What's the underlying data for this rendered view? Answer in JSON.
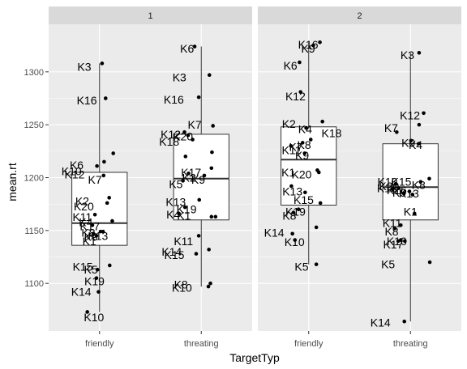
{
  "chart_data": {
    "type": "boxplot",
    "xlabel": "TargetTyp",
    "ylabel": "mean.rt",
    "yticks": [
      1100,
      1150,
      1200,
      1250,
      1300
    ],
    "ylim": [
      1055,
      1345
    ],
    "categories": [
      "friendly",
      "threating"
    ],
    "grid": true,
    "facets": [
      {
        "strip": "1",
        "boxes": [
          {
            "category": "friendly",
            "min": 1073,
            "q1": 1136,
            "median": 1157,
            "q3": 1205,
            "max": 1308
          },
          {
            "category": "threating",
            "min": 1097,
            "q1": 1160,
            "median": 1199,
            "q3": 1241,
            "max": 1324
          }
        ],
        "points": [
          {
            "category": "friendly",
            "y": 1308,
            "jitter": 0.05,
            "label": "K3",
            "lx": -0.3,
            "ly": 1305
          },
          {
            "category": "friendly",
            "y": 1275,
            "jitter": 0.12,
            "label": "K16",
            "lx": -0.25,
            "ly": 1273
          },
          {
            "category": "friendly",
            "y": 1223,
            "jitter": 0.27,
            "label": "K6",
            "lx": -0.45,
            "ly": 1212
          },
          {
            "category": "friendly",
            "y": 1215,
            "jitter": 0.09,
            "label": "K10",
            "lx": -0.55,
            "ly": 1206
          },
          {
            "category": "friendly",
            "y": 1211,
            "jitter": -0.05,
            "label": "K12",
            "lx": -0.49,
            "ly": 1203
          },
          {
            "category": "friendly",
            "y": 1202,
            "jitter": 0.08,
            "label": "K7",
            "lx": -0.09,
            "ly": 1198
          },
          {
            "category": "friendly",
            "y": 1181,
            "jitter": 0.19,
            "label": "K2",
            "lx": -0.34,
            "ly": 1178
          },
          {
            "category": "friendly",
            "y": 1176,
            "jitter": 0.15,
            "label": "K20",
            "lx": -0.31,
            "ly": 1173
          },
          {
            "category": "friendly",
            "y": 1165,
            "jitter": -0.09,
            "label": "K11",
            "lx": -0.34,
            "ly": 1163
          },
          {
            "category": "friendly",
            "y": 1159,
            "jitter": 0.25,
            "label": "K4",
            "lx": -0.27,
            "ly": 1158
          },
          {
            "category": "friendly",
            "y": 1155,
            "jitter": -0.14,
            "label": "K17",
            "lx": -0.19,
            "ly": 1154
          },
          {
            "category": "friendly",
            "y": 1149,
            "jitter": 0.02,
            "label": "K8",
            "lx": -0.22,
            "ly": 1148
          },
          {
            "category": "friendly",
            "y": 1149,
            "jitter": 0.07,
            "label": "K13",
            "lx": -0.03,
            "ly": 1145
          },
          {
            "category": "friendly",
            "y": 1147,
            "jitter": -0.12,
            "label": "K9",
            "lx": -0.17,
            "ly": 1144
          },
          {
            "category": "friendly",
            "y": 1145,
            "jitter": -0.06,
            "label": "K1",
            "lx": -0.2,
            "ly": 1140
          },
          {
            "category": "friendly",
            "y": 1117,
            "jitter": 0.2,
            "label": "K15",
            "lx": -0.33,
            "ly": 1116
          },
          {
            "category": "friendly",
            "y": 1113,
            "jitter": -0.04,
            "label": "K5",
            "lx": -0.17,
            "ly": 1113
          },
          {
            "category": "friendly",
            "y": 1105,
            "jitter": -0.06,
            "label": "K19",
            "lx": -0.1,
            "ly": 1102
          },
          {
            "category": "friendly",
            "y": 1092,
            "jitter": -0.02,
            "label": "K14",
            "lx": -0.36,
            "ly": 1092
          },
          {
            "category": "friendly",
            "y": 1073,
            "jitter": -0.24,
            "label": "K10",
            "lx": -0.11,
            "ly": 1068
          },
          {
            "category": "threating",
            "y": 1324,
            "jitter": -0.13,
            "label": "K6",
            "lx": -0.28,
            "ly": 1322
          },
          {
            "category": "threating",
            "y": 1297,
            "jitter": 0.16,
            "label": "K3",
            "lx": -0.43,
            "ly": 1295
          },
          {
            "category": "threating",
            "y": 1276,
            "jitter": -0.05,
            "label": "K16",
            "lx": -0.54,
            "ly": 1274
          },
          {
            "category": "threating",
            "y": 1249,
            "jitter": 0.23,
            "label": "K7",
            "lx": -0.13,
            "ly": 1250
          },
          {
            "category": "threating",
            "y": 1243,
            "jitter": -0.33,
            "label": "K12",
            "lx": -0.6,
            "ly": 1241
          },
          {
            "category": "threating",
            "y": 1240,
            "jitter": -0.26,
            "label": "K20",
            "lx": -0.36,
            "ly": 1239
          },
          {
            "category": "threating",
            "y": 1236,
            "jitter": -0.17,
            "label": "K18",
            "lx": -0.63,
            "ly": 1234
          },
          {
            "category": "threating",
            "y": 1224,
            "jitter": 0.21,
            "label": "",
            "lx": 0,
            "ly": 0
          },
          {
            "category": "threating",
            "y": 1220,
            "jitter": -0.31,
            "label": "",
            "lx": 0,
            "ly": 0
          },
          {
            "category": "threating",
            "y": 1209,
            "jitter": 0.2,
            "label": "K17",
            "lx": -0.2,
            "ly": 1205
          },
          {
            "category": "threating",
            "y": 1204,
            "jitter": -0.25,
            "label": "K2",
            "lx": -0.24,
            "ly": 1200
          },
          {
            "category": "threating",
            "y": 1202,
            "jitter": 0.06,
            "label": "K9",
            "lx": -0.06,
            "ly": 1198
          },
          {
            "category": "threating",
            "y": 1197,
            "jitter": -0.36,
            "label": "K5",
            "lx": -0.5,
            "ly": 1194
          },
          {
            "category": "threating",
            "y": 1179,
            "jitter": -0.04,
            "label": "K13",
            "lx": -0.5,
            "ly": 1177
          },
          {
            "category": "threating",
            "y": 1172,
            "jitter": -0.32,
            "label": "K19",
            "lx": -0.29,
            "ly": 1170
          },
          {
            "category": "threating",
            "y": 1166,
            "jitter": -0.44,
            "label": "K4",
            "lx": -0.55,
            "ly": 1165
          },
          {
            "category": "threating",
            "y": 1163,
            "jitter": 0.2,
            "label": "K1",
            "lx": -0.34,
            "ly": 1164
          },
          {
            "category": "threating",
            "y": 1163,
            "jitter": 0.28,
            "label": "",
            "lx": 0,
            "ly": 0
          },
          {
            "category": "threating",
            "y": 1145,
            "jitter": -0.05,
            "label": "K11",
            "lx": -0.35,
            "ly": 1140
          },
          {
            "category": "threating",
            "y": 1132,
            "jitter": 0.15,
            "label": "K14",
            "lx": -0.58,
            "ly": 1130
          },
          {
            "category": "threating",
            "y": 1128,
            "jitter": -0.1,
            "label": "K15",
            "lx": -0.53,
            "ly": 1127
          },
          {
            "category": "threating",
            "y": 1100,
            "jitter": 0.18,
            "label": "K8",
            "lx": -0.4,
            "ly": 1099
          },
          {
            "category": "threating",
            "y": 1097,
            "jitter": 0.14,
            "label": "K10",
            "lx": -0.38,
            "ly": 1096
          }
        ]
      },
      {
        "strip": "2",
        "boxes": [
          {
            "category": "friendly",
            "min": 1118,
            "q1": 1174,
            "median": 1217,
            "q3": 1248,
            "max": 1328
          },
          {
            "category": "threating",
            "min": 1064,
            "q1": 1160,
            "median": 1191,
            "q3": 1232,
            "max": 1318
          }
        ],
        "points": [
          {
            "category": "friendly",
            "y": 1328,
            "jitter": 0.22,
            "label": "K16",
            "lx": -0.01,
            "ly": 1326
          },
          {
            "category": "friendly",
            "y": 1325,
            "jitter": 0.09,
            "label": "K9",
            "lx": -0.01,
            "ly": 1322
          },
          {
            "category": "friendly",
            "y": 1309,
            "jitter": -0.18,
            "label": "K6",
            "lx": -0.36,
            "ly": 1306
          },
          {
            "category": "friendly",
            "y": 1281,
            "jitter": -0.16,
            "label": "K12",
            "lx": -0.26,
            "ly": 1277
          },
          {
            "category": "friendly",
            "y": 1253,
            "jitter": 0.27,
            "label": "K2",
            "lx": -0.39,
            "ly": 1251
          },
          {
            "category": "friendly",
            "y": 1247,
            "jitter": -0.05,
            "label": "K4",
            "lx": -0.07,
            "ly": 1246
          },
          {
            "category": "friendly",
            "y": 1236,
            "jitter": 0.04,
            "label": "K18",
            "lx": 0.45,
            "ly": 1242
          },
          {
            "category": "friendly",
            "y": 1233,
            "jitter": -0.12,
            "label": "K8",
            "lx": -0.09,
            "ly": 1231
          },
          {
            "category": "friendly",
            "y": 1230,
            "jitter": -0.35,
            "label": "K7",
            "lx": -0.25,
            "ly": 1229
          },
          {
            "category": "friendly",
            "y": 1223,
            "jitter": -0.08,
            "label": "K9",
            "lx": -0.13,
            "ly": 1221
          },
          {
            "category": "friendly",
            "y": 1207,
            "jitter": 0.17,
            "label": "K11",
            "lx": -0.34,
            "ly": 1226
          },
          {
            "category": "friendly",
            "y": 1205,
            "jitter": 0.2,
            "label": "K20",
            "lx": -0.14,
            "ly": 1203
          },
          {
            "category": "friendly",
            "y": 1192,
            "jitter": -0.34,
            "label": "K1",
            "lx": -0.4,
            "ly": 1205
          },
          {
            "category": "friendly",
            "y": 1186,
            "jitter": -0.07,
            "label": "K13",
            "lx": -0.32,
            "ly": 1187
          },
          {
            "category": "friendly",
            "y": 1176,
            "jitter": 0.23,
            "label": "K15",
            "lx": -0.1,
            "ly": 1179
          },
          {
            "category": "friendly",
            "y": 1170,
            "jitter": -0.2,
            "label": "K19",
            "lx": -0.26,
            "ly": 1168
          },
          {
            "category": "friendly",
            "y": 1167,
            "jitter": -0.3,
            "label": "K8",
            "lx": -0.38,
            "ly": 1164
          },
          {
            "category": "friendly",
            "y": 1153,
            "jitter": 0.15,
            "label": "",
            "lx": 0,
            "ly": 0
          },
          {
            "category": "friendly",
            "y": 1147,
            "jitter": -0.32,
            "label": "K14",
            "lx": -0.68,
            "ly": 1148
          },
          {
            "category": "friendly",
            "y": 1141,
            "jitter": -0.27,
            "label": "K10",
            "lx": -0.28,
            "ly": 1139
          },
          {
            "category": "friendly",
            "y": 1118,
            "jitter": 0.15,
            "label": "K5",
            "lx": -0.14,
            "ly": 1116
          },
          {
            "category": "threating",
            "y": 1318,
            "jitter": 0.17,
            "label": "K3",
            "lx": -0.06,
            "ly": 1316
          },
          {
            "category": "threating",
            "y": 1261,
            "jitter": 0.26,
            "label": "K12",
            "lx": -0.01,
            "ly": 1259
          },
          {
            "category": "threating",
            "y": 1250,
            "jitter": 0.17,
            "label": "",
            "lx": 0,
            "ly": 0
          },
          {
            "category": "threating",
            "y": 1243,
            "jitter": -0.27,
            "label": "K7",
            "lx": -0.38,
            "ly": 1247
          },
          {
            "category": "threating",
            "y": 1235,
            "jitter": 0.01,
            "label": "K9",
            "lx": -0.04,
            "ly": 1233
          },
          {
            "category": "threating",
            "y": 1232,
            "jitter": 0.16,
            "label": "K4",
            "lx": 0.1,
            "ly": 1231
          },
          {
            "category": "threating",
            "y": 1199,
            "jitter": 0.37,
            "label": "K15",
            "lx": -0.18,
            "ly": 1196
          },
          {
            "category": "threating",
            "y": 1196,
            "jitter": 0.2,
            "label": "K8",
            "lx": 0.16,
            "ly": 1193
          },
          {
            "category": "threating",
            "y": 1194,
            "jitter": -0.29,
            "label": "K10",
            "lx": -0.45,
            "ly": 1196
          },
          {
            "category": "threating",
            "y": 1190,
            "jitter": -0.23,
            "label": "K20",
            "lx": -0.42,
            "ly": 1192
          },
          {
            "category": "threating",
            "y": 1189,
            "jitter": -0.35,
            "label": "K18",
            "lx": -0.46,
            "ly": 1190
          },
          {
            "category": "threating",
            "y": 1187,
            "jitter": -0.02,
            "label": "K16",
            "lx": -0.27,
            "ly": 1188
          },
          {
            "category": "threating",
            "y": 1185,
            "jitter": -0.13,
            "label": "K9",
            "lx": -0.22,
            "ly": 1186
          },
          {
            "category": "threating",
            "y": 1184,
            "jitter": 0.04,
            "label": "K13",
            "lx": -0.03,
            "ly": 1185
          },
          {
            "category": "threating",
            "y": 1166,
            "jitter": 0.08,
            "label": "K1",
            "lx": 0.0,
            "ly": 1168
          },
          {
            "category": "threating",
            "y": 1155,
            "jitter": -0.19,
            "label": "K11",
            "lx": -0.36,
            "ly": 1157
          },
          {
            "category": "threating",
            "y": 1152,
            "jitter": -0.31,
            "label": "K8",
            "lx": -0.37,
            "ly": 1149
          },
          {
            "category": "threating",
            "y": 1141,
            "jitter": -0.19,
            "label": "K10",
            "lx": -0.27,
            "ly": 1140
          },
          {
            "category": "threating",
            "y": 1140,
            "jitter": -0.24,
            "label": "K17",
            "lx": -0.34,
            "ly": 1137
          },
          {
            "category": "threating",
            "y": 1140,
            "jitter": -0.11,
            "label": "",
            "lx": 0,
            "ly": 0
          },
          {
            "category": "threating",
            "y": 1120,
            "jitter": 0.38,
            "label": "K5",
            "lx": -0.44,
            "ly": 1118
          },
          {
            "category": "threating",
            "y": 1064,
            "jitter": -0.12,
            "label": "K14",
            "lx": -0.59,
            "ly": 1063
          }
        ]
      }
    ]
  }
}
